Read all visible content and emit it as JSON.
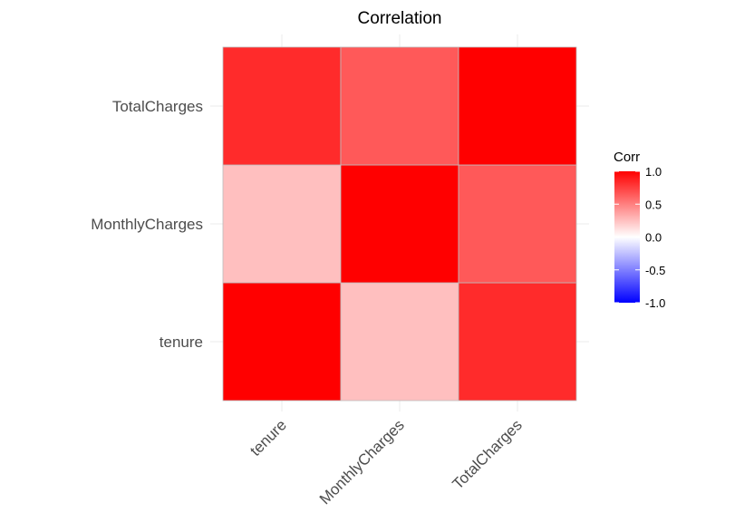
{
  "chart_data": {
    "type": "heatmap",
    "title": "Correlation",
    "x_categories": [
      "tenure",
      "MonthlyCharges",
      "TotalCharges"
    ],
    "y_categories": [
      "tenure",
      "MonthlyCharges",
      "TotalCharges"
    ],
    "matrix": [
      [
        1.0,
        0.25,
        0.83
      ],
      [
        0.25,
        1.0,
        0.65
      ],
      [
        0.83,
        0.65,
        1.0
      ]
    ],
    "legend": {
      "title": "Corr",
      "ticks": [
        "1.0",
        "0.5",
        "0.0",
        "-0.5",
        "-1.0"
      ],
      "tick_values": [
        1.0,
        0.5,
        0.0,
        -0.5,
        -1.0
      ],
      "range": [
        -1,
        1
      ],
      "low_color": "#0000ff",
      "mid_color": "#ffffff",
      "high_color": "#ff0000",
      "placement": "right"
    },
    "grid": true
  }
}
